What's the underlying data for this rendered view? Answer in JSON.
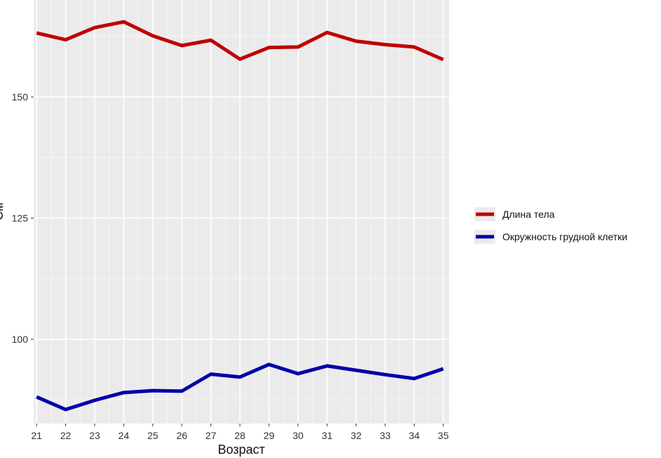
{
  "chart_data": {
    "type": "line",
    "title": "",
    "xlabel": "Возраст",
    "ylabel": "См",
    "x": [
      21,
      22,
      23,
      24,
      25,
      26,
      27,
      28,
      29,
      30,
      31,
      32,
      33,
      34,
      35
    ],
    "xlim": [
      20.9,
      35.2
    ],
    "ylim": [
      82.6,
      170
    ],
    "y_ticks": [
      100,
      125,
      150
    ],
    "grid": true,
    "legend_position": "right",
    "series": [
      {
        "name": "Длина тела",
        "color": "#c00000",
        "values": [
          163.2,
          161.8,
          164.3,
          165.5,
          162.6,
          160.6,
          161.7,
          157.8,
          160.2,
          160.3,
          163.3,
          161.5,
          160.8,
          160.3,
          157.7
        ]
      },
      {
        "name": "Окружность грудной клетки",
        "color": "#0000aa",
        "values": [
          88.1,
          85.5,
          87.4,
          89.0,
          89.4,
          89.3,
          92.8,
          92.2,
          94.8,
          92.9,
          94.5,
          93.6,
          92.7,
          91.9,
          93.9
        ]
      }
    ]
  }
}
